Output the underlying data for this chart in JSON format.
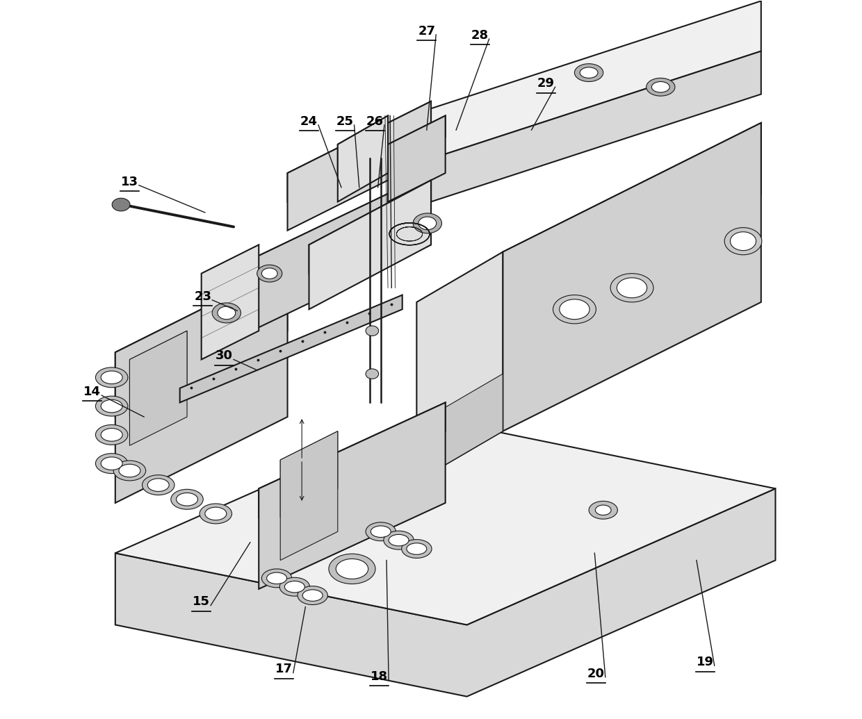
{
  "figure_width": 12.4,
  "figure_height": 10.35,
  "dpi": 100,
  "background_color": "#ffffff",
  "line_color": "#1a1a1a",
  "label_color": "#000000",
  "label_fontsize": 13,
  "label_fontweight": "bold",
  "labels": {
    "13": [
      0.08,
      0.748,
      0.185,
      0.705
    ],
    "14": [
      0.028,
      0.455,
      0.1,
      0.42
    ],
    "15": [
      0.18,
      0.162,
      0.248,
      0.245
    ],
    "17": [
      0.295,
      0.068,
      0.325,
      0.155
    ],
    "18": [
      0.428,
      0.058,
      0.438,
      0.22
    ],
    "19": [
      0.882,
      0.078,
      0.87,
      0.22
    ],
    "20": [
      0.73,
      0.062,
      0.728,
      0.23
    ],
    "23": [
      0.182,
      0.588,
      0.23,
      0.568
    ],
    "24": [
      0.33,
      0.832,
      0.375,
      0.74
    ],
    "25": [
      0.38,
      0.832,
      0.4,
      0.74
    ],
    "26": [
      0.422,
      0.832,
      0.426,
      0.74
    ],
    "27": [
      0.494,
      0.958,
      0.494,
      0.82
    ],
    "28": [
      0.568,
      0.952,
      0.535,
      0.82
    ],
    "29": [
      0.66,
      0.885,
      0.64,
      0.82
    ],
    "30": [
      0.212,
      0.505,
      0.258,
      0.485
    ]
  }
}
